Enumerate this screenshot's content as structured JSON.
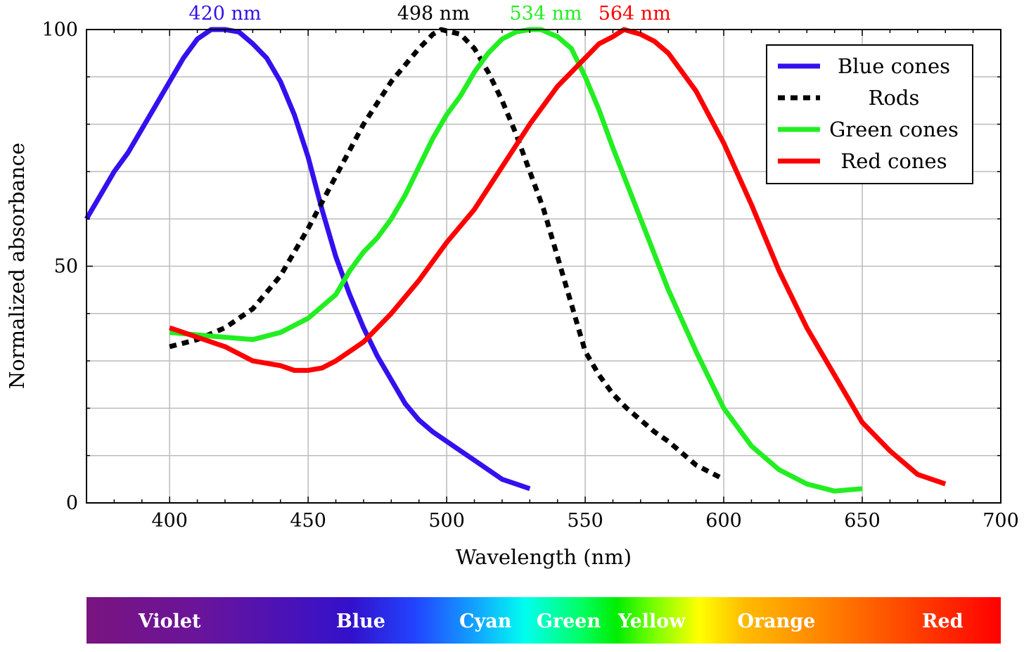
{
  "chart_data": {
    "type": "line",
    "title": "",
    "xlabel": "Wavelength (nm)",
    "ylabel": "Normalized absorbance",
    "xlim": [
      370,
      700
    ],
    "ylim": [
      0,
      100
    ],
    "xticks": [
      400,
      450,
      500,
      550,
      600,
      650,
      700
    ],
    "yticks": [
      0,
      50,
      100
    ],
    "x_minor_step": 10,
    "y_minor_step": 10,
    "grid": true,
    "legend_position": "top-right",
    "series": [
      {
        "name": "Blue cones",
        "color": "#3311ee",
        "style": "solid",
        "peak_label": "420 nm",
        "x": [
          370,
          375,
          380,
          385,
          390,
          395,
          400,
          405,
          410,
          415,
          420,
          425,
          430,
          435,
          440,
          445,
          450,
          455,
          460,
          465,
          470,
          475,
          480,
          485,
          490,
          495,
          500,
          505,
          510,
          515,
          520,
          525,
          530
        ],
        "y": [
          60,
          65,
          70,
          74,
          79,
          84,
          89,
          94,
          98,
          100,
          100,
          99.5,
          97,
          94,
          89,
          82,
          73,
          62,
          52,
          44,
          37,
          31,
          26,
          21,
          17.5,
          15,
          13,
          11,
          9,
          7,
          5,
          4,
          3
        ]
      },
      {
        "name": "Rods",
        "color": "#000000",
        "style": "dashed",
        "peak_label": "498 nm",
        "x": [
          400,
          410,
          420,
          430,
          440,
          450,
          460,
          470,
          480,
          490,
          495,
          498,
          505,
          510,
          515,
          520,
          525,
          530,
          535,
          540,
          545,
          550,
          555,
          560,
          565,
          570,
          575,
          580,
          590,
          600
        ],
        "y": [
          33,
          34.5,
          37,
          41,
          48,
          58,
          69,
          80,
          89,
          96,
          99,
          100,
          99,
          96,
          91,
          85,
          78,
          70,
          62,
          52,
          42,
          32,
          27,
          23,
          20,
          17.5,
          15,
          13,
          8,
          5
        ]
      },
      {
        "name": "Green cones",
        "color": "#22ee22",
        "style": "solid",
        "peak_label": "534 nm",
        "x": [
          400,
          410,
          420,
          430,
          440,
          450,
          460,
          465,
          470,
          475,
          480,
          485,
          490,
          495,
          500,
          505,
          510,
          515,
          520,
          525,
          530,
          534,
          540,
          545,
          550,
          555,
          560,
          570,
          580,
          590,
          600,
          610,
          620,
          630,
          640,
          650
        ],
        "y": [
          36,
          35.5,
          35,
          34.5,
          36,
          39,
          44,
          49,
          53,
          56,
          60,
          65,
          71,
          77,
          82,
          86,
          91,
          95,
          98,
          99.5,
          100,
          100,
          98.5,
          96,
          90,
          83,
          75,
          60,
          45,
          32,
          20,
          12,
          7,
          4,
          2.5,
          3
        ]
      },
      {
        "name": "Red cones",
        "color": "#ff0000",
        "style": "solid",
        "peak_label": "564 nm",
        "x": [
          400,
          410,
          420,
          430,
          440,
          445,
          450,
          455,
          460,
          470,
          480,
          490,
          500,
          510,
          520,
          530,
          540,
          550,
          555,
          560,
          564,
          570,
          575,
          580,
          590,
          600,
          610,
          620,
          630,
          640,
          650,
          660,
          670,
          680
        ],
        "y": [
          37,
          35,
          33,
          30,
          29,
          28,
          28,
          28.5,
          30,
          34,
          40,
          47,
          55,
          62,
          71,
          80,
          88,
          94,
          97,
          98.5,
          100,
          99,
          97.5,
          95,
          87,
          76,
          63,
          49,
          37,
          27,
          17,
          11,
          6,
          4
        ]
      }
    ]
  },
  "spectrum_bar": {
    "labels": [
      "Violet",
      "Blue",
      "Cyan",
      "Green",
      "Yellow",
      "Orange",
      "Red"
    ],
    "label_wavelengths": [
      400,
      469,
      514,
      544,
      574,
      619,
      679
    ]
  }
}
